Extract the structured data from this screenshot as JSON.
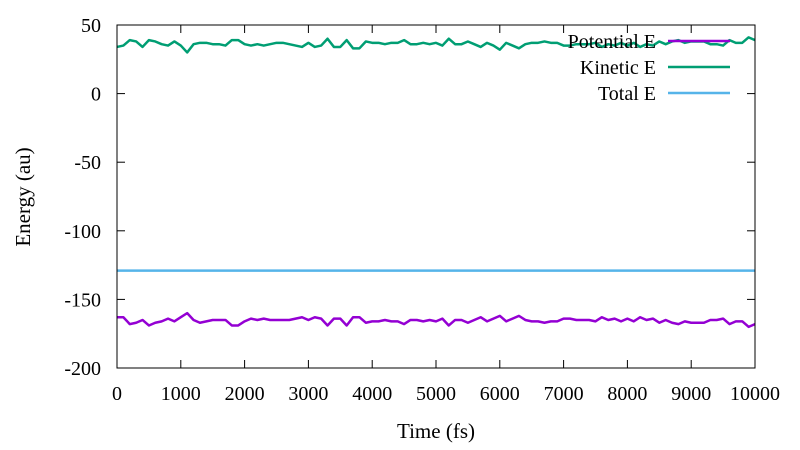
{
  "chart_data": {
    "type": "line",
    "title": "",
    "xlabel": "Time (fs)",
    "ylabel": "Energy (au)",
    "xlim": [
      0,
      10000
    ],
    "ylim": [
      -200,
      50
    ],
    "x_ticks": [
      0,
      1000,
      2000,
      3000,
      4000,
      5000,
      6000,
      7000,
      8000,
      9000,
      10000
    ],
    "y_ticks": [
      -200,
      -150,
      -100,
      -50,
      0,
      50
    ],
    "grid": false,
    "legend_position": "top-right",
    "x": [
      0,
      100,
      200,
      300,
      400,
      500,
      600,
      700,
      800,
      900,
      1000,
      1100,
      1200,
      1300,
      1400,
      1500,
      1600,
      1700,
      1800,
      1900,
      2000,
      2100,
      2200,
      2300,
      2400,
      2500,
      2600,
      2700,
      2800,
      2900,
      3000,
      3100,
      3200,
      3300,
      3400,
      3500,
      3600,
      3700,
      3800,
      3900,
      4000,
      4100,
      4200,
      4300,
      4400,
      4500,
      4600,
      4700,
      4800,
      4900,
      5000,
      5100,
      5200,
      5300,
      5400,
      5500,
      5600,
      5700,
      5800,
      5900,
      6000,
      6100,
      6200,
      6300,
      6400,
      6500,
      6600,
      6700,
      6800,
      6900,
      7000,
      7100,
      7200,
      7300,
      7400,
      7500,
      7600,
      7700,
      7800,
      7900,
      8000,
      8100,
      8200,
      8300,
      8400,
      8500,
      8600,
      8700,
      8800,
      8900,
      9000,
      9100,
      9200,
      9300,
      9400,
      9500,
      9600,
      9700,
      9800,
      9900,
      10000
    ],
    "series": [
      {
        "name": "Potential E",
        "color": "#9400d3",
        "values": [
          -163,
          -163,
          -168,
          -167,
          -165,
          -169,
          -167,
          -166,
          -164,
          -166,
          -163,
          -160,
          -165,
          -167,
          -166,
          -165,
          -165,
          -165,
          -169,
          -169,
          -166,
          -164,
          -165,
          -164,
          -165,
          -165,
          -165,
          -165,
          -164,
          -163,
          -165,
          -163,
          -164,
          -169,
          -164,
          -164,
          -169,
          -163,
          -163,
          -167,
          -166,
          -166,
          -165,
          -166,
          -166,
          -168,
          -165,
          -165,
          -166,
          -165,
          -166,
          -164,
          -169,
          -165,
          -165,
          -167,
          -165,
          -163,
          -166,
          -164,
          -162,
          -166,
          -164,
          -162,
          -165,
          -166,
          -166,
          -167,
          -166,
          -166,
          -164,
          -164,
          -165,
          -165,
          -165,
          -166,
          -163,
          -165,
          -164,
          -166,
          -164,
          -166,
          -163,
          -165,
          -164,
          -167,
          -165,
          -167,
          -168,
          -166,
          -167,
          -167,
          -167,
          -165,
          -165,
          -164,
          -168,
          -166,
          -166,
          -170,
          -168
        ]
      },
      {
        "name": "Kinetic E",
        "color": "#009e73",
        "values": [
          34,
          35,
          39,
          38,
          34,
          39,
          38,
          36,
          35,
          38,
          35,
          30,
          36,
          37,
          37,
          36,
          36,
          35,
          39,
          39,
          36,
          35,
          36,
          35,
          36,
          37,
          37,
          36,
          35,
          34,
          37,
          34,
          35,
          40,
          34,
          34,
          39,
          33,
          33,
          38,
          37,
          37,
          36,
          37,
          37,
          39,
          36,
          36,
          37,
          36,
          37,
          35,
          40,
          36,
          36,
          38,
          36,
          34,
          37,
          35,
          32,
          37,
          35,
          33,
          36,
          37,
          37,
          38,
          37,
          37,
          35,
          35,
          36,
          36,
          36,
          37,
          34,
          36,
          35,
          37,
          35,
          37,
          34,
          36,
          35,
          38,
          36,
          38,
          39,
          37,
          38,
          38,
          38,
          36,
          36,
          35,
          39,
          37,
          37,
          41,
          39
        ]
      },
      {
        "name": "Total E",
        "color": "#56b4e9",
        "values": [
          -129,
          -129,
          -129,
          -129,
          -129,
          -129,
          -129,
          -129,
          -129,
          -129,
          -129,
          -129,
          -129,
          -129,
          -129,
          -129,
          -129,
          -129,
          -129,
          -129,
          -129,
          -129,
          -129,
          -129,
          -129,
          -129,
          -129,
          -129,
          -129,
          -129,
          -129,
          -129,
          -129,
          -129,
          -129,
          -129,
          -129,
          -129,
          -129,
          -129,
          -129,
          -129,
          -129,
          -129,
          -129,
          -129,
          -129,
          -129,
          -129,
          -129,
          -129,
          -129,
          -129,
          -129,
          -129,
          -129,
          -129,
          -129,
          -129,
          -129,
          -129,
          -129,
          -129,
          -129,
          -129,
          -129,
          -129,
          -129,
          -129,
          -129,
          -129,
          -129,
          -129,
          -129,
          -129,
          -129,
          -129,
          -129,
          -129,
          -129,
          -129,
          -129,
          -129,
          -129,
          -129,
          -129,
          -129,
          -129,
          -129,
          -129,
          -129,
          -129,
          -129,
          -129,
          -129,
          -129,
          -129,
          -129,
          -129,
          -129,
          -129
        ]
      }
    ]
  }
}
